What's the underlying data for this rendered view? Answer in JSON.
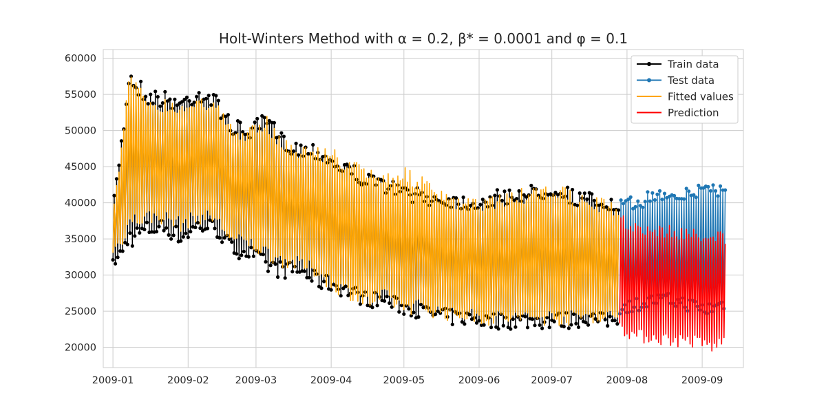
{
  "chart_data": {
    "type": "line",
    "title": "Holt-Winters Method with α = 0.2, β* = 0.0001 and φ = 0.1",
    "xlabel": "",
    "ylabel": "",
    "x_range": [
      "2008-12-28",
      "2009-09-18"
    ],
    "ylim": [
      17200,
      61200
    ],
    "x_ticks": [
      "2009-01",
      "2009-02",
      "2009-03",
      "2009-04",
      "2009-05",
      "2009-06",
      "2009-07",
      "2009-08",
      "2009-09"
    ],
    "y_ticks": [
      20000,
      25000,
      30000,
      35000,
      40000,
      45000,
      50000,
      55000,
      60000
    ],
    "grid": true,
    "legend_position": "top-right",
    "sampling": "daily (dense hourly oscillation in original approximated by daily min/max envelope)",
    "train_period": [
      "2009-01-01",
      "2009-07-28"
    ],
    "test_period": [
      "2009-07-29",
      "2009-09-10"
    ],
    "series": [
      {
        "name": "Train data",
        "color": "#000000",
        "marker": "circle",
        "dates": [
          "2009-01-01",
          "2009-01-05",
          "2009-01-07",
          "2009-01-15",
          "2009-01-22",
          "2009-01-29",
          "2009-02-05",
          "2009-02-12",
          "2009-02-19",
          "2009-02-26",
          "2009-03-05",
          "2009-03-12",
          "2009-03-19",
          "2009-03-26",
          "2009-04-02",
          "2009-04-09",
          "2009-04-16",
          "2009-04-23",
          "2009-04-30",
          "2009-05-07",
          "2009-05-14",
          "2009-05-21",
          "2009-05-28",
          "2009-06-04",
          "2009-06-11",
          "2009-06-18",
          "2009-06-25",
          "2009-07-02",
          "2009-07-09",
          "2009-07-16",
          "2009-07-23",
          "2009-07-28"
        ],
        "max": [
          41000,
          52000,
          59000,
          56000,
          55500,
          55000,
          56500,
          55000,
          51500,
          51000,
          52500,
          49500,
          48500,
          48500,
          46500,
          45500,
          44000,
          43500,
          42500,
          42000,
          41500,
          41500,
          41000,
          41500,
          42000,
          42500,
          42500,
          43500,
          42000,
          41500,
          41000,
          40000
        ],
        "min": [
          31000,
          32000,
          33500,
          35000,
          35500,
          34000,
          35500,
          35500,
          32500,
          32000,
          30000,
          29500,
          29500,
          28000,
          27500,
          26500,
          25500,
          25500,
          24500,
          24000,
          23500,
          23000,
          23000,
          22500,
          22500,
          22500,
          22500,
          22500,
          22500,
          23000,
          22500,
          23000
        ]
      },
      {
        "name": "Test data",
        "color": "#1f77b4",
        "marker": "circle",
        "dates": [
          "2009-07-29",
          "2009-08-05",
          "2009-08-12",
          "2009-08-19",
          "2009-08-26",
          "2009-09-02",
          "2009-09-06",
          "2009-09-10"
        ],
        "max": [
          40500,
          41000,
          42000,
          42500,
          42000,
          43500,
          43000,
          43000
        ],
        "min": [
          24500,
          25000,
          25500,
          25500,
          25000,
          24000,
          24500,
          25000
        ]
      },
      {
        "name": "Fitted values",
        "color": "#ffa500",
        "marker": "",
        "dates": [
          "2009-01-01",
          "2009-01-05",
          "2009-01-07",
          "2009-01-15",
          "2009-01-22",
          "2009-01-29",
          "2009-02-05",
          "2009-02-12",
          "2009-02-19",
          "2009-02-26",
          "2009-03-05",
          "2009-03-12",
          "2009-03-19",
          "2009-03-26",
          "2009-04-02",
          "2009-04-09",
          "2009-04-16",
          "2009-04-23",
          "2009-04-30",
          "2009-05-07",
          "2009-05-14",
          "2009-05-21",
          "2009-05-28",
          "2009-06-04",
          "2009-06-11",
          "2009-06-18",
          "2009-06-25",
          "2009-07-02",
          "2009-07-09",
          "2009-07-16",
          "2009-07-23",
          "2009-07-28"
        ],
        "max": [
          40000,
          51000,
          58000,
          55000,
          54500,
          54000,
          55500,
          54000,
          50500,
          50500,
          52000,
          49000,
          48000,
          48000,
          47500,
          46000,
          45000,
          44500,
          45000,
          44000,
          42000,
          41000,
          40500,
          41000,
          41500,
          42000,
          42000,
          43000,
          41500,
          41000,
          40500,
          39500
        ],
        "min": [
          33000,
          34000,
          36000,
          37000,
          37000,
          36000,
          37000,
          37000,
          34000,
          33500,
          32000,
          31000,
          30500,
          29500,
          27500,
          26500,
          25000,
          26000,
          24500,
          24500,
          24000,
          23500,
          23500,
          23000,
          23000,
          23000,
          23000,
          23000,
          23000,
          23500,
          23000,
          24000
        ]
      },
      {
        "name": "Prediction",
        "color": "#ff0000",
        "marker": "",
        "dates": [
          "2009-07-29",
          "2009-08-05",
          "2009-08-12",
          "2009-08-19",
          "2009-08-26",
          "2009-09-02",
          "2009-09-06",
          "2009-09-10"
        ],
        "max": [
          38500,
          37500,
          37000,
          37000,
          36500,
          36500,
          36500,
          36000
        ],
        "min": [
          22000,
          20500,
          20500,
          20000,
          20000,
          19500,
          19000,
          20000
        ]
      }
    ]
  }
}
